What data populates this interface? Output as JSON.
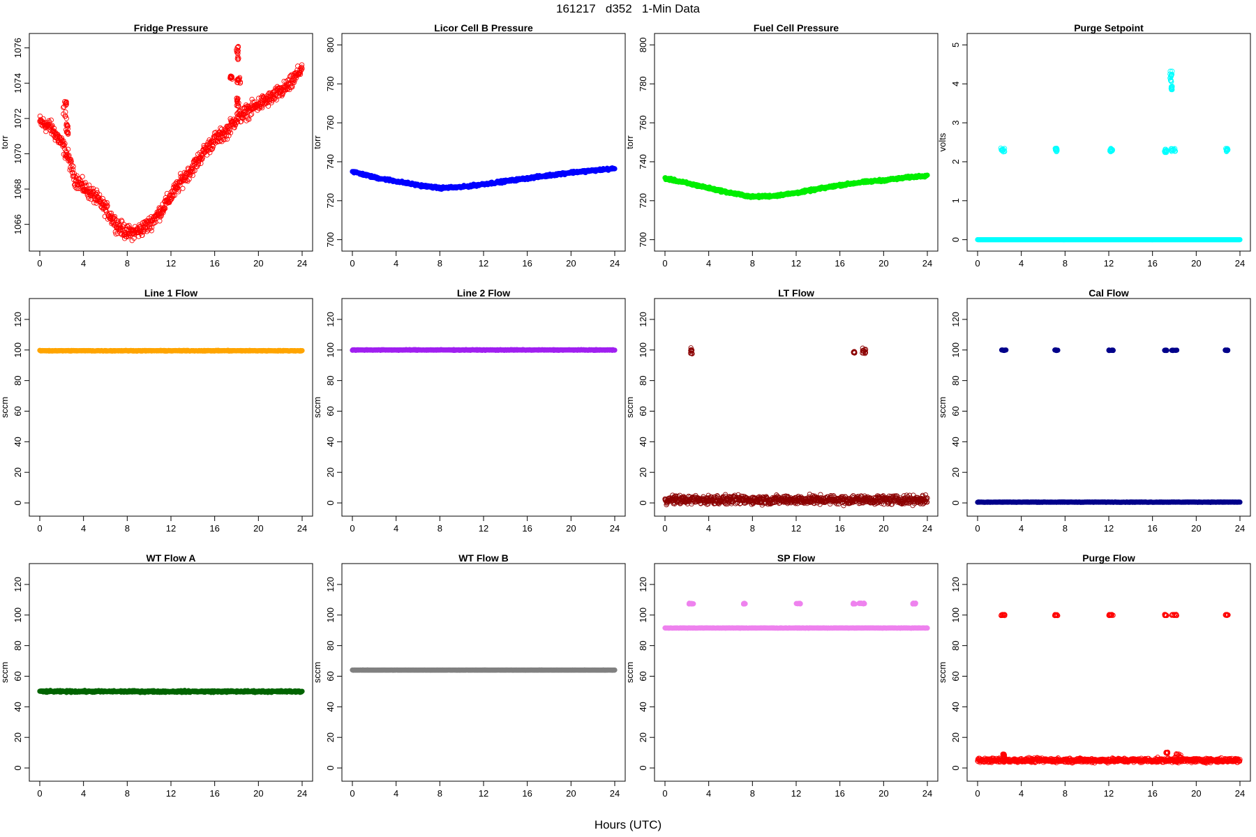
{
  "figure": {
    "title": "161217   d352   1-Min Data",
    "xlabel": "Hours (UTC)"
  },
  "chart_data": [
    {
      "type": "scatter",
      "title": "Fridge Pressure",
      "ylabel": "torr",
      "xlim": [
        0,
        24
      ],
      "xticks": [
        0,
        4,
        8,
        12,
        16,
        20,
        24
      ],
      "ylim": [
        1064.8,
        1076.5
      ],
      "yticks": [
        1066,
        1068,
        1070,
        1072,
        1074,
        1076
      ],
      "color": "#ff0000",
      "marker": "open",
      "series": [
        {
          "baseline": [
            [
              0,
              1071.8
            ],
            [
              1,
              1071.5
            ],
            [
              2,
              1070.6
            ],
            [
              2.6,
              1069.8
            ],
            [
              3.2,
              1068.6
            ],
            [
              4,
              1068.1
            ],
            [
              5,
              1067.6
            ],
            [
              6,
              1066.9
            ],
            [
              7,
              1066.0
            ],
            [
              8,
              1065.5
            ],
            [
              9,
              1065.6
            ],
            [
              10,
              1066.0
            ],
            [
              11,
              1066.7
            ],
            [
              12,
              1067.6
            ],
            [
              13,
              1068.5
            ],
            [
              14,
              1069.2
            ],
            [
              15,
              1070.1
            ],
            [
              16,
              1070.8
            ],
            [
              17,
              1071.2
            ],
            [
              18,
              1072.0
            ],
            [
              19,
              1072.4
            ],
            [
              20,
              1072.8
            ],
            [
              21,
              1073.1
            ],
            [
              22,
              1073.5
            ],
            [
              23,
              1074.0
            ],
            [
              24,
              1074.9
            ]
          ],
          "noise": 0.35,
          "clusters": [
            [
              2.3,
              1072.5,
              0.15,
              0.5
            ],
            [
              2.5,
              1071.4,
              0.1,
              0.3
            ],
            [
              17.5,
              1074.3,
              0.1,
              0.1
            ],
            [
              18.1,
              1075.7,
              0.15,
              0.4
            ],
            [
              18.2,
              1074.2,
              0.15,
              0.2
            ],
            [
              18.1,
              1073.0,
              0.1,
              0.3
            ]
          ]
        }
      ]
    },
    {
      "type": "scatter",
      "title": "Licor Cell B Pressure",
      "ylabel": "torr",
      "xlim": [
        0,
        24
      ],
      "xticks": [
        0,
        4,
        8,
        12,
        16,
        20,
        24
      ],
      "ylim": [
        697,
        803
      ],
      "yticks": [
        700,
        720,
        740,
        760,
        780,
        800
      ],
      "color": "#0000ff",
      "marker": "filled",
      "series": [
        {
          "baseline": [
            [
              0,
              735
            ],
            [
              2,
              732
            ],
            [
              4,
              730
            ],
            [
              6,
              728
            ],
            [
              8,
              726.5
            ],
            [
              10,
              727
            ],
            [
              12,
              728.5
            ],
            [
              14,
              730
            ],
            [
              16,
              731.5
            ],
            [
              18,
              733
            ],
            [
              20,
              734.5
            ],
            [
              22,
              735.5
            ],
            [
              24,
              736.5
            ]
          ],
          "noise": 0.5,
          "clusters": []
        }
      ]
    },
    {
      "type": "scatter",
      "title": "Fuel Cell Pressure",
      "ylabel": "torr",
      "xlim": [
        0,
        24
      ],
      "xticks": [
        0,
        4,
        8,
        12,
        16,
        20,
        24
      ],
      "ylim": [
        697,
        803
      ],
      "yticks": [
        700,
        720,
        740,
        760,
        780,
        800
      ],
      "color": "#00ee00",
      "marker": "filled",
      "series": [
        {
          "baseline": [
            [
              0,
              731.5
            ],
            [
              2,
              729
            ],
            [
              4,
              726.5
            ],
            [
              6,
              724
            ],
            [
              8,
              722
            ],
            [
              10,
              722.5
            ],
            [
              12,
              724
            ],
            [
              14,
              726
            ],
            [
              16,
              728
            ],
            [
              18,
              729.5
            ],
            [
              20,
              730.5
            ],
            [
              22,
              731.8
            ],
            [
              24,
              733
            ]
          ],
          "noise": 0.5,
          "clusters": []
        }
      ]
    },
    {
      "type": "scatter",
      "title": "Purge Setpoint",
      "ylabel": "volts",
      "xlim": [
        0,
        24
      ],
      "xticks": [
        0,
        4,
        8,
        12,
        16,
        20,
        24
      ],
      "ylim": [
        -0.15,
        5.15
      ],
      "yticks": [
        0,
        1,
        2,
        3,
        4,
        5
      ],
      "color": "#00ffff",
      "marker": "open",
      "series": [
        {
          "baseline": [
            [
              0,
              0
            ],
            [
              24,
              0
            ]
          ],
          "noise": 0.0,
          "clusters": [
            [
              2.3,
              2.3,
              0.2,
              0.05
            ],
            [
              7.2,
              2.3,
              0.1,
              0.05
            ],
            [
              12.2,
              2.3,
              0.15,
              0.05
            ],
            [
              17.2,
              2.28,
              0.1,
              0.05
            ],
            [
              17.9,
              2.3,
              0.2,
              0.04
            ],
            [
              17.7,
              4.2,
              0.1,
              0.15
            ],
            [
              17.75,
              3.9,
              0.05,
              0.05
            ],
            [
              22.8,
              2.3,
              0.1,
              0.05
            ]
          ]
        }
      ]
    },
    {
      "type": "scatter",
      "title": "Line 1 Flow",
      "ylabel": "sccm",
      "xlim": [
        0,
        24
      ],
      "xticks": [
        0,
        4,
        8,
        12,
        16,
        20,
        24
      ],
      "ylim": [
        -5,
        130
      ],
      "yticks": [
        0,
        20,
        40,
        60,
        80,
        100,
        120
      ],
      "color": "#ffa500",
      "marker": "filled",
      "series": [
        {
          "baseline": [
            [
              0,
              99.5
            ],
            [
              24,
              99.5
            ]
          ],
          "noise": 0.2,
          "clusters": []
        }
      ]
    },
    {
      "type": "scatter",
      "title": "Line 2 Flow",
      "ylabel": "sccm",
      "xlim": [
        0,
        24
      ],
      "xticks": [
        0,
        4,
        8,
        12,
        16,
        20,
        24
      ],
      "ylim": [
        -5,
        130
      ],
      "yticks": [
        0,
        20,
        40,
        60,
        80,
        100,
        120
      ],
      "color": "#a020f0",
      "marker": "filled",
      "series": [
        {
          "baseline": [
            [
              0,
              100
            ],
            [
              24,
              100
            ]
          ],
          "noise": 0.2,
          "clusters": []
        }
      ]
    },
    {
      "type": "scatter",
      "title": "LT Flow",
      "ylabel": "sccm",
      "xlim": [
        0,
        24
      ],
      "xticks": [
        0,
        4,
        8,
        12,
        16,
        20,
        24
      ],
      "ylim": [
        -5,
        130
      ],
      "yticks": [
        0,
        20,
        40,
        60,
        80,
        100,
        120
      ],
      "color": "#8b0000",
      "marker": "open",
      "series": [
        {
          "baseline": [
            [
              0,
              2
            ],
            [
              24,
              2
            ]
          ],
          "noise": 2.4,
          "clusters": [
            [
              2.4,
              99.5,
              0.1,
              2
            ],
            [
              17.3,
              98.5,
              0.05,
              0.5
            ],
            [
              18.2,
              99.5,
              0.15,
              2
            ]
          ]
        }
      ]
    },
    {
      "type": "scatter",
      "title": "Cal Flow",
      "ylabel": "sccm",
      "xlim": [
        0,
        24
      ],
      "xticks": [
        0,
        4,
        8,
        12,
        16,
        20,
        24
      ],
      "ylim": [
        -5,
        130
      ],
      "yticks": [
        0,
        20,
        40,
        60,
        80,
        100,
        120
      ],
      "color": "#00008b",
      "marker": "filled",
      "series": [
        {
          "baseline": [
            [
              0,
              0.5
            ],
            [
              24,
              0.5
            ]
          ],
          "noise": 0.1,
          "clusters": [
            [
              2.4,
              99.8,
              0.2,
              0.2
            ],
            [
              7.2,
              99.8,
              0.15,
              0.2
            ],
            [
              12.2,
              99.8,
              0.2,
              0.2
            ],
            [
              17.2,
              99.8,
              0.1,
              0.2
            ],
            [
              18.0,
              99.8,
              0.25,
              0.2
            ],
            [
              22.8,
              99.8,
              0.15,
              0.2
            ]
          ]
        }
      ]
    },
    {
      "type": "scatter",
      "title": "WT Flow A",
      "ylabel": "sccm",
      "xlim": [
        0,
        24
      ],
      "xticks": [
        0,
        4,
        8,
        12,
        16,
        20,
        24
      ],
      "ylim": [
        -5,
        130
      ],
      "yticks": [
        0,
        20,
        40,
        60,
        80,
        100,
        120
      ],
      "color": "#006400",
      "marker": "filled",
      "series": [
        {
          "baseline": [
            [
              0,
              50
            ],
            [
              24,
              50
            ]
          ],
          "noise": 0.5,
          "clusters": []
        }
      ]
    },
    {
      "type": "scatter",
      "title": "WT Flow B",
      "ylabel": "sccm",
      "xlim": [
        0,
        24
      ],
      "xticks": [
        0,
        4,
        8,
        12,
        16,
        20,
        24
      ],
      "ylim": [
        -5,
        130
      ],
      "yticks": [
        0,
        20,
        40,
        60,
        80,
        100,
        120
      ],
      "color": "#808080",
      "marker": "filled",
      "series": [
        {
          "baseline": [
            [
              0,
              64
            ],
            [
              24,
              64
            ]
          ],
          "noise": 0.1,
          "clusters": []
        }
      ]
    },
    {
      "type": "scatter",
      "title": "SP Flow",
      "ylabel": "sccm",
      "xlim": [
        0,
        24
      ],
      "xticks": [
        0,
        4,
        8,
        12,
        16,
        20,
        24
      ],
      "ylim": [
        -5,
        130
      ],
      "yticks": [
        0,
        20,
        40,
        60,
        80,
        100,
        120
      ],
      "color": "#ee82ee",
      "marker": "filled",
      "series": [
        {
          "baseline": [
            [
              0,
              91.5
            ],
            [
              24,
              91.5
            ]
          ],
          "noise": 0.1,
          "clusters": [
            [
              2.4,
              107.5,
              0.2,
              0.3
            ],
            [
              7.2,
              107.5,
              0.15,
              0.3
            ],
            [
              12.2,
              107.5,
              0.2,
              0.3
            ],
            [
              17.3,
              107.5,
              0.1,
              0.3
            ],
            [
              18.0,
              107.5,
              0.25,
              0.3
            ],
            [
              22.8,
              107.5,
              0.15,
              0.3
            ]
          ]
        }
      ]
    },
    {
      "type": "scatter",
      "title": "Purge Flow",
      "ylabel": "sccm",
      "xlim": [
        0,
        24
      ],
      "xticks": [
        0,
        4,
        8,
        12,
        16,
        20,
        24
      ],
      "ylim": [
        -5,
        130
      ],
      "yticks": [
        0,
        20,
        40,
        60,
        80,
        100,
        120
      ],
      "color": "#ff0000",
      "marker": "open",
      "series": [
        {
          "baseline": [
            [
              0,
              5
            ],
            [
              24,
              5
            ]
          ],
          "noise": 1.2,
          "clusters": [
            [
              2.3,
              100,
              0.2,
              0.4
            ],
            [
              7.2,
              100,
              0.15,
              0.4
            ],
            [
              12.2,
              100,
              0.2,
              0.4
            ],
            [
              17.2,
              100,
              0.1,
              0.4
            ],
            [
              18.0,
              100,
              0.25,
              0.4
            ],
            [
              22.8,
              100,
              0.15,
              0.4
            ],
            [
              2.4,
              8,
              0.1,
              1.5
            ],
            [
              17.3,
              10,
              0.1,
              0.5
            ],
            [
              18.3,
              8,
              0.3,
              1.5
            ]
          ]
        }
      ]
    }
  ]
}
